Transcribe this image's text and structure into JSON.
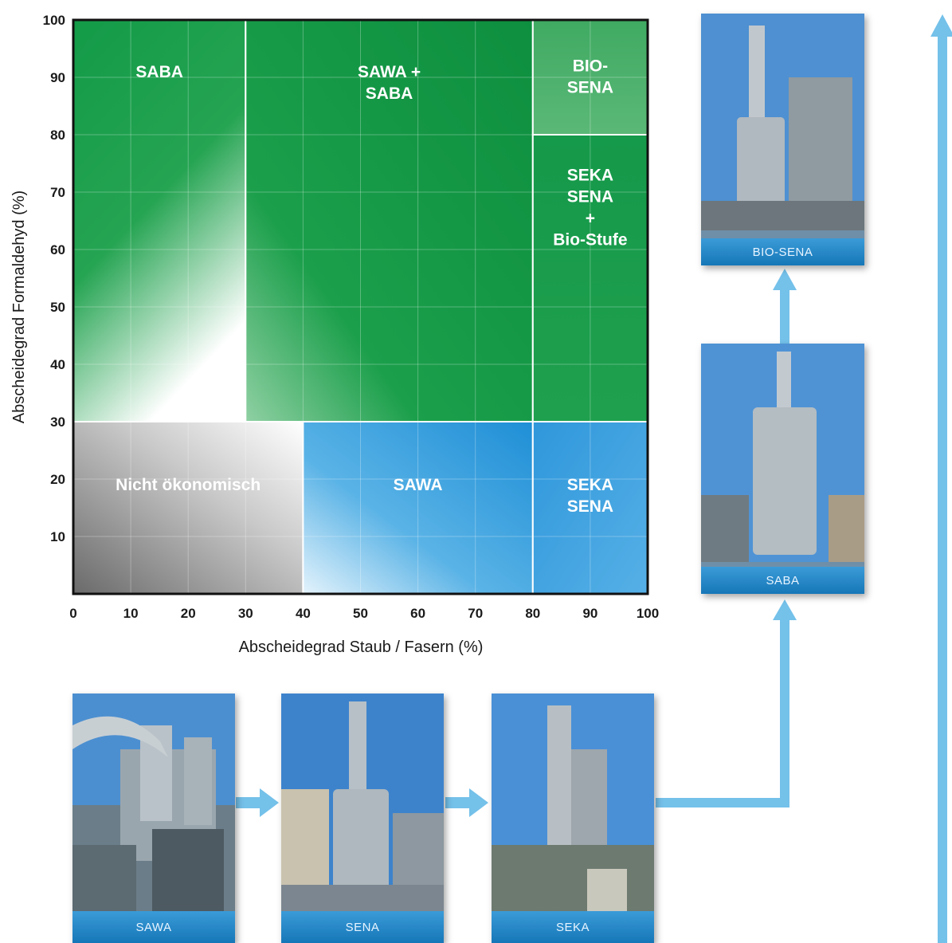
{
  "chart_data": {
    "type": "heatmap",
    "xlabel": "Abscheidegrad Staub / Fasern (%)",
    "ylabel": "Abscheidegrad Formaldehyd (%)",
    "xlim": [
      0,
      100
    ],
    "ylim": [
      0,
      100
    ],
    "x_ticks": [
      "0",
      "10",
      "20",
      "30",
      "40",
      "50",
      "60",
      "70",
      "80",
      "90",
      "100"
    ],
    "y_ticks": [
      "10",
      "20",
      "30",
      "40",
      "50",
      "60",
      "70",
      "80",
      "90",
      "100"
    ],
    "grid": true,
    "regions": [
      {
        "label": [
          "SABA"
        ],
        "x": [
          0,
          30
        ],
        "y": [
          30,
          100
        ],
        "color": "green"
      },
      {
        "label": [
          "SAWA +",
          "SABA"
        ],
        "x": [
          30,
          80
        ],
        "y": [
          30,
          100
        ],
        "color": "green"
      },
      {
        "label": [
          "BIO-",
          "SENA"
        ],
        "x": [
          80,
          100
        ],
        "y": [
          80,
          100
        ],
        "color": "light-green"
      },
      {
        "label": [
          "SEKA",
          "SENA",
          "+",
          "Bio-Stufe"
        ],
        "x": [
          80,
          100
        ],
        "y": [
          30,
          80
        ],
        "color": "green"
      },
      {
        "label": [
          "Nicht ökonomisch"
        ],
        "x": [
          0,
          40
        ],
        "y": [
          0,
          30
        ],
        "color": "gray"
      },
      {
        "label": [
          "SAWA"
        ],
        "x": [
          40,
          80
        ],
        "y": [
          0,
          30
        ],
        "color": "blue"
      },
      {
        "label": [
          "SEKA",
          "SENA"
        ],
        "x": [
          80,
          100
        ],
        "y": [
          0,
          30
        ],
        "color": "blue"
      }
    ]
  },
  "cards": {
    "sawa": "SAWA",
    "sena": "SENA",
    "seka": "SEKA",
    "saba": "SABA",
    "biosena": "BIO-SENA"
  },
  "colors": {
    "green": "#129a46",
    "light_green": "#4fb46e",
    "blue": "#2f9ddd",
    "gray": "#8a8a8a",
    "arrow": "#74c1ea"
  }
}
